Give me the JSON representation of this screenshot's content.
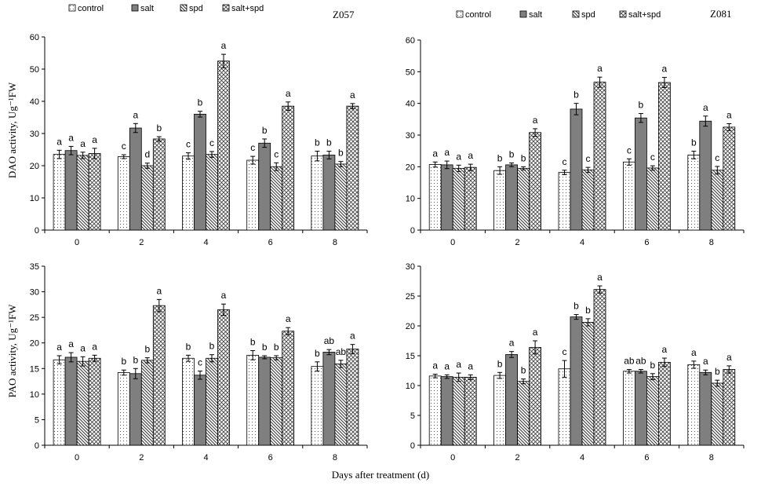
{
  "legend": [
    "control",
    "salt",
    "spd",
    "salt+spd"
  ],
  "shared_ylabels": {
    "dao": "DAO activity, Ug⁻¹FW",
    "pao": "PAO activity, Ug⁻¹FW"
  },
  "xlabel": "Days after treatment (d)",
  "chart_data": [
    {
      "type": "bar",
      "panel": "top-left",
      "title": "Z057",
      "ylabel": "DAO activity, Ug⁻¹FW",
      "ylim": [
        0,
        60
      ],
      "yticks": [
        0,
        10,
        20,
        30,
        40,
        50,
        60
      ],
      "categories": [
        "0",
        "2",
        "4",
        "6",
        "8"
      ],
      "series": [
        {
          "name": "control",
          "values": [
            23.5,
            22.8,
            23.0,
            21.7,
            23.0
          ],
          "errors": [
            1.3,
            0.6,
            1.0,
            1.2,
            1.5
          ],
          "sig": [
            "a",
            "c",
            "c",
            "c",
            "b"
          ]
        },
        {
          "name": "salt",
          "values": [
            24.7,
            31.7,
            36.0,
            27.0,
            23.3
          ],
          "errors": [
            1.3,
            1.4,
            0.9,
            1.3,
            1.2
          ],
          "sig": [
            "a",
            "a",
            "b",
            "b",
            "b"
          ]
        },
        {
          "name": "spd",
          "values": [
            23.2,
            20.0,
            23.5,
            19.7,
            20.5
          ],
          "errors": [
            1.0,
            0.8,
            0.9,
            1.2,
            0.8
          ],
          "sig": [
            "a",
            "d",
            "c",
            "c",
            "b"
          ]
        },
        {
          "name": "salt+spd",
          "values": [
            23.8,
            28.3,
            52.5,
            38.5,
            38.5
          ],
          "errors": [
            1.6,
            0.7,
            2.1,
            1.3,
            0.8
          ],
          "sig": [
            "a",
            "b",
            "a",
            "a",
            "a"
          ]
        }
      ]
    },
    {
      "type": "bar",
      "panel": "top-right",
      "title": "Z081",
      "ylabel": "DAO activity, Ug⁻¹FW",
      "ylim": [
        0,
        60
      ],
      "yticks": [
        0,
        10,
        20,
        30,
        40,
        50,
        60
      ],
      "categories": [
        "0",
        "2",
        "4",
        "6",
        "8"
      ],
      "series": [
        {
          "name": "control",
          "values": [
            20.7,
            18.8,
            18.2,
            21.5,
            23.7
          ],
          "errors": [
            0.8,
            1.2,
            0.7,
            1.0,
            1.2
          ],
          "sig": [
            "a",
            "b",
            "c",
            "c",
            "b"
          ]
        },
        {
          "name": "salt",
          "values": [
            20.6,
            20.6,
            38.2,
            35.4,
            34.4
          ],
          "errors": [
            1.2,
            0.6,
            1.8,
            1.4,
            1.6
          ],
          "sig": [
            "a",
            "b",
            "b",
            "b",
            "a"
          ]
        },
        {
          "name": "spd",
          "values": [
            19.5,
            19.5,
            19.0,
            19.6,
            18.9
          ],
          "errors": [
            1.0,
            0.5,
            0.8,
            0.7,
            1.2
          ],
          "sig": [
            "a",
            "b",
            "c",
            "c",
            "c"
          ]
        },
        {
          "name": "salt+spd",
          "values": [
            19.8,
            30.8,
            46.7,
            46.6,
            32.5
          ],
          "errors": [
            1.0,
            1.2,
            1.6,
            1.6,
            1.1
          ],
          "sig": [
            "a",
            "a",
            "a",
            "a",
            "a"
          ]
        }
      ]
    },
    {
      "type": "bar",
      "panel": "bottom-left",
      "title": "",
      "ylabel": "PAO activity, Ug⁻¹FW",
      "ylim": [
        0,
        35
      ],
      "yticks": [
        0,
        5,
        10,
        15,
        20,
        25,
        30,
        35
      ],
      "categories": [
        "0",
        "2",
        "4",
        "6",
        "8"
      ],
      "series": [
        {
          "name": "control",
          "values": [
            16.7,
            14.2,
            17.0,
            17.6,
            15.4
          ],
          "errors": [
            0.8,
            0.5,
            0.6,
            0.9,
            0.9
          ],
          "sig": [
            "a",
            "b",
            "b",
            "b",
            "b"
          ]
        },
        {
          "name": "salt",
          "values": [
            17.2,
            14.0,
            13.7,
            17.2,
            18.2
          ],
          "errors": [
            0.9,
            1.0,
            0.8,
            0.3,
            0.5
          ],
          "sig": [
            "a",
            "b",
            "c",
            "b",
            "ab"
          ]
        },
        {
          "name": "spd",
          "values": [
            16.4,
            16.6,
            17.0,
            17.1,
            15.9
          ],
          "errors": [
            0.9,
            0.5,
            0.7,
            0.4,
            0.7
          ],
          "sig": [
            "a",
            "b",
            "b",
            "b",
            "ab"
          ]
        },
        {
          "name": "salt+spd",
          "values": [
            17.0,
            27.3,
            26.5,
            22.3,
            18.8
          ],
          "errors": [
            0.6,
            1.2,
            1.1,
            0.7,
            0.9
          ],
          "sig": [
            "a",
            "a",
            "a",
            "a",
            "a"
          ]
        }
      ]
    },
    {
      "type": "bar",
      "panel": "bottom-right",
      "title": "",
      "ylabel": "PAO activity, Ug⁻¹FW",
      "ylim": [
        0,
        30
      ],
      "yticks": [
        0,
        5,
        10,
        15,
        20,
        25,
        30
      ],
      "categories": [
        "0",
        "2",
        "4",
        "6",
        "8"
      ],
      "series": [
        {
          "name": "control",
          "values": [
            11.6,
            11.7,
            12.8,
            12.4,
            13.5
          ],
          "errors": [
            0.3,
            0.5,
            1.4,
            0.3,
            0.6
          ],
          "sig": [
            "a",
            "b",
            "c",
            "ab",
            "a"
          ]
        },
        {
          "name": "salt",
          "values": [
            11.5,
            15.2,
            21.5,
            12.4,
            12.2
          ],
          "errors": [
            0.3,
            0.5,
            0.4,
            0.3,
            0.4
          ],
          "sig": [
            "a",
            "a",
            "b",
            "ab",
            "a"
          ]
        },
        {
          "name": "spd",
          "values": [
            11.4,
            10.7,
            20.6,
            11.5,
            10.4
          ],
          "errors": [
            0.7,
            0.4,
            0.6,
            0.5,
            0.5
          ],
          "sig": [
            "a",
            "b",
            "b",
            "b",
            "b"
          ]
        },
        {
          "name": "salt+spd",
          "values": [
            11.4,
            16.4,
            26.1,
            13.9,
            12.7
          ],
          "errors": [
            0.4,
            1.1,
            0.6,
            0.7,
            0.6
          ],
          "sig": [
            "a",
            "a",
            "a",
            "a",
            "a"
          ]
        }
      ]
    }
  ]
}
